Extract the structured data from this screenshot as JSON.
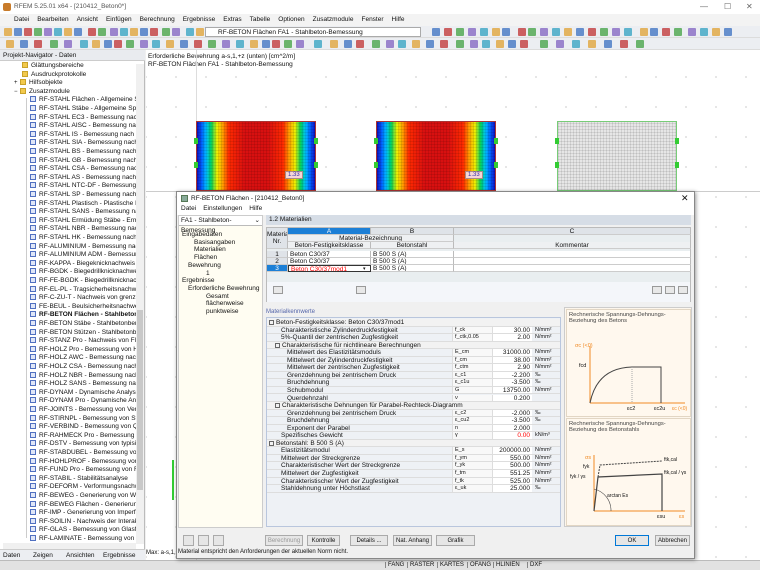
{
  "app": {
    "title": "RFEM 5.25.01 x64 - [210412_Beton0*]",
    "menu": [
      "Datei",
      "Bearbeiten",
      "Ansicht",
      "Einfügen",
      "Berechnung",
      "Ergebnisse",
      "Extras",
      "Tabelle",
      "Optionen",
      "Zusatzmodule",
      "Fenster",
      "Hilfe"
    ],
    "module_combo": "RF-BETON Flächen FA1 - Stahlbeton-Bemessung"
  },
  "navigator": {
    "title": "Projekt-Navigator - Daten",
    "folders": [
      "Glättungsbereiche",
      "Ausdruckprotokolle",
      "Hilfsobjekte",
      "Zusatzmodule"
    ],
    "modules": [
      "RF-STAHL Flächen - Allgemeine Spannu",
      "RF-STAHL Stäbe - Allgemeine Spannu",
      "RF-STAHL EC3 - Bemessung nach Eu",
      "RF-STAHL AISC - Bemessung nach AI",
      "RF-STAHL IS - Bemessung nach IS",
      "RF-STAHL SIA - Bemessung nach SIA",
      "RF-STAHL BS - Bemessung nach BS",
      "RF-STAHL GB - Bemessung nach GB",
      "RF-STAHL CSA - Bemessung nach CS",
      "RF-STAHL AS - Bemessung nach AS",
      "RF-STAHL NTC-DF - Bemessung nach",
      "RF-STAHL SP - Bemessung nach SP",
      "RF-STAHL Plastisch - Plastische Bem",
      "RF-STAHL SANS - Bemessung nach S",
      "RF-STAHL Ermüdung Stäbe - Ermüdu",
      "RF-STAHL NBR - Bemessung nach NB",
      "RF-STAHL HK - Bemessung nach HK",
      "RF-ALUMINIUM - Bemessung nach E",
      "RF-ALUMINIUM ADM - Bemessung v",
      "RF-KAPPA - Biegeknicknachweis",
      "RF-BGDK - Biegedrillknicknachweis",
      "RF-FE-BGDK - Biegedrillknicknachwe",
      "RF-EL-PL - Tragsicherheitsnachweis n",
      "RF-C-ZU-T - Nachweis von grenz (c/t",
      "FE-BEUL - Beulsicherheitsnachweis",
      "RF-BETON Flächen - Stahlbetonben",
      "RF-BETON Stäbe - Stahlbetonbemess",
      "RF-BETON Stützen - Stahlbetonbeme",
      "RF-STANZ Pro - Nachweis von Fläche",
      "RF-HOLZ Pro - Bemessung von Holz",
      "RF-HOLZ AWC - Bemessung nach AW",
      "RF-HOLZ CSA - Bemessung nach CSA",
      "RF-HOLZ NBR - Bemessung nach NB",
      "RF-HOLZ SANS - Bemessung nach SA",
      "RF-DYNAM - Dynamische Analyse (B",
      "RF-DYNAM Pro - Dynamische Analys",
      "RF-JOINTS - Bemessung von Verbind",
      "RF-STIRNPL - Bemessung von Stirnpl",
      "RF-VERBIND - Bemessung von Querk",
      "RF-RAHMECK Pro - Bemessung von",
      "RF-DSTV - Bemessung von typisierter",
      "RF-STABDÜBEL - Bemessung von Sta",
      "RF-HOHLPROF - Bemessung von Ho",
      "RF-FUND Pro - Bemessung von Fund",
      "RF-STABIL - Stabilitätsanalyse",
      "RF-DEFORM - Verformungsnachweis",
      "RF-BEWEG - Generierung von Wande",
      "RF-BEWEG Flächen - Generierung vo",
      "RF-IMP - Generierung von Imperfekti",
      "RF-SOILIN - Nachweis der Interaktion",
      "RF-GLAS - Bemessung von Glasfläche",
      "RF-LAMINATE - Bemessung von Lam"
    ],
    "active_module": "RF-BETON Flächen - Stahlbetonben",
    "tabs": [
      "Daten",
      "Zeigen",
      "Ansichten",
      "Ergebnisse"
    ]
  },
  "view": {
    "info_line1": "Erforderliche Bewehrung a-s,1,+z (unten) [cm^2/m]",
    "info_line2": "RF-BETON Flächen FA1 - Stahlbeton-Bemessung",
    "value_label_1": "1.33",
    "value_label_2": "1.33",
    "max_text": "Max: a-s,1,+z"
  },
  "statusbar": [
    "FANG",
    "RASTER",
    "KARTES",
    "OFANG",
    "HLINIEN",
    "DXF"
  ],
  "dialog": {
    "title": "RF-BETON Flächen - [210412_Beton0]",
    "menu": [
      "Datei",
      "Einstellungen",
      "Hilfe"
    ],
    "case_combo": "FA1 - Stahlbeton-Bemessung",
    "tree": [
      {
        "t": "Eingabedaten",
        "l": 0
      },
      {
        "t": "Basisangaben",
        "l": 1
      },
      {
        "t": "Materialien",
        "l": 1
      },
      {
        "t": "Flächen",
        "l": 1
      },
      {
        "t": "Bewehrung",
        "l": 0.5
      },
      {
        "t": "1",
        "l": 2
      },
      {
        "t": "Ergebnisse",
        "l": 0
      },
      {
        "t": "Erforderliche Bewehrung",
        "l": 0.5
      },
      {
        "t": "Gesamt",
        "l": 2
      },
      {
        "t": "flächenweise",
        "l": 2
      },
      {
        "t": "punktweise",
        "l": 2
      }
    ],
    "section_title": "1.2 Materialien",
    "materials": {
      "col_letters": [
        "A",
        "B",
        "C"
      ],
      "nr_header": "Material Nr.",
      "group_header": "Material-Bezeichnung",
      "col_headers": [
        "Beton-Festigkeitsklasse",
        "Betonstahl",
        "Kommentar"
      ],
      "rows": [
        {
          "nr": "1",
          "concrete": "Beton C30/37",
          "steel": "B 500 S (A)",
          "comment": ""
        },
        {
          "nr": "2",
          "concrete": "Beton C30/37",
          "steel": "B 500 S (A)",
          "comment": ""
        },
        {
          "nr": "3",
          "concrete": "Beton C30/37mod1",
          "steel": "B 500 S (A)",
          "comment": ""
        }
      ],
      "selected_row": 3
    },
    "props_title": "Materialkennwerte",
    "props": [
      {
        "g": 0,
        "n": "Beton-Festigkeitsklasse: Beton C30/37mod1"
      },
      {
        "i": 1,
        "n": "Charakteristische Zylinderdruckfestigkeit",
        "s": "f_ck",
        "v": "30.00",
        "u": "N/mm²"
      },
      {
        "i": 1,
        "n": "5%-Quantil der zentrischen Zugfestigkeit",
        "s": "f_ctk,0.05",
        "v": "2.00",
        "u": "N/mm²"
      },
      {
        "g": 1,
        "n": "Charakteristische für nichtlineare Berechnungen"
      },
      {
        "i": 2,
        "n": "Mittelwert des Elastizitätsmoduls",
        "s": "E_cm",
        "v": "31000.00",
        "u": "N/mm²"
      },
      {
        "i": 2,
        "n": "Mittelwert der Zylinderdruckfestigkeit",
        "s": "f_cm",
        "v": "38.00",
        "u": "N/mm²"
      },
      {
        "i": 2,
        "n": "Mittelwert der zentrischen Zugfestigkeit",
        "s": "f_ctm",
        "v": "2.90",
        "u": "N/mm²"
      },
      {
        "i": 2,
        "n": "Grenzdehnung bei zentrischem Druck",
        "s": "ε_c1",
        "v": "-2.200",
        "u": "‰"
      },
      {
        "i": 2,
        "n": "Bruchdehnung",
        "s": "ε_c1u",
        "v": "-3.500",
        "u": "‰"
      },
      {
        "i": 2,
        "n": "Schubmodul",
        "s": "G",
        "v": "13750.00",
        "u": "N/mm²"
      },
      {
        "i": 2,
        "n": "Querdehnzahl",
        "s": "ν",
        "v": "0.200",
        "u": ""
      },
      {
        "g": 1,
        "n": "Charakteristische Dehnungen für  Parabel-Rechteck-Diagramm"
      },
      {
        "i": 2,
        "n": "Grenzdehnung bei zentrischem Druck",
        "s": "ε_c2",
        "v": "-2.000",
        "u": "‰"
      },
      {
        "i": 2,
        "n": "Bruchdehnung",
        "s": "ε_cu2",
        "v": "-3.500",
        "u": "‰"
      },
      {
        "i": 2,
        "n": "Exponent der Parabel",
        "s": "n",
        "v": "2.000",
        "u": ""
      },
      {
        "i": 1,
        "n": "Spezifisches Gewicht",
        "s": "γ",
        "v": "0.00",
        "u": "kN/m³",
        "red": true
      },
      {
        "g": 0,
        "n": "Betonstahl: B 500 S (A)"
      },
      {
        "i": 1,
        "n": "Elastizitätsmodul",
        "s": "E_s",
        "v": "200000.00",
        "u": "N/mm²"
      },
      {
        "i": 1,
        "n": "Mittelwert der Streckgrenze",
        "s": "f_ym",
        "v": "550.00",
        "u": "N/mm²"
      },
      {
        "i": 1,
        "n": "Charakteristischer Wert der Streckgrenze",
        "s": "f_yk",
        "v": "500.00",
        "u": "N/mm²"
      },
      {
        "i": 1,
        "n": "Mittelwert der Zugfestigkeit",
        "s": "f_tm",
        "v": "551.25",
        "u": "N/mm²"
      },
      {
        "i": 1,
        "n": "Charakteristischer Wert der Zugfestigkeit",
        "s": "f_tk",
        "v": "525.00",
        "u": "N/mm²"
      },
      {
        "i": 1,
        "n": "Stahldehnung unter Höchstlast",
        "s": "ε_uk",
        "v": "25.000",
        "u": "‰"
      }
    ],
    "graph1": {
      "title": "Rechnerische Spannungs-Dehnungs-Beziehung des Betons",
      "y_axis": "σc (<0)",
      "y_label": "fcd",
      "x1": "εc2",
      "x2": "εc2u",
      "x_axis": "εc (<0)"
    },
    "graph2": {
      "title": "Rechnerische Spannungs-Dehnungs-Beziehung des Betonstahls",
      "y_axis": "σs",
      "y1": "fyk",
      "y2": "fyk / γs",
      "r1": "ftk,cal",
      "r2": "ftk,cal / γs",
      "angle": "arctan Es",
      "x1": "εsu",
      "x_axis": "εs"
    },
    "buttons": {
      "calc": "Berechnung",
      "check": "Kontrolle",
      "details": "Details ...",
      "annex": "Nat. Anhang",
      "graphic": "Grafik",
      "ok": "OK",
      "cancel": "Abbrechen"
    },
    "status": "Material entspricht den Anforderungen der aktuellen Norm nicht."
  },
  "colors": {
    "accent": "#0078d7",
    "error": "#ff0000",
    "graph_axis": "#f08a24"
  }
}
